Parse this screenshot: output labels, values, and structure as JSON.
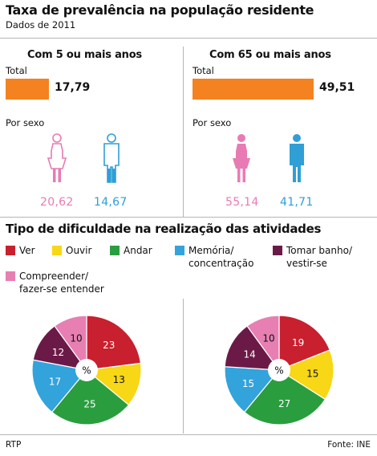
{
  "title": "Taxa de prevalência na população residente",
  "subtitle": "Dados de 2011",
  "colors": {
    "bar": "#f58220",
    "female": "#e87bb4",
    "male": "#2f9fd6",
    "ver": "#c8202e",
    "ouvir": "#f7d716",
    "andar": "#2a9e3f",
    "memoria": "#33a3dc",
    "tomar": "#6b1a47",
    "compreender": "#e77fb2"
  },
  "groups": [
    {
      "heading": "Com 5 ou mais anos",
      "total_label": "Total",
      "total_value": "17,79",
      "sexo_label": "Por sexo",
      "female_value": "20,62",
      "male_value": "14,67"
    },
    {
      "heading": "Com 65 ou mais anos",
      "total_label": "Total",
      "total_value": "49,51",
      "sexo_label": "Por sexo",
      "female_value": "55,14",
      "male_value": "41,71"
    }
  ],
  "section2_title": "Tipo de dificuldade  na realização das atividades",
  "legend": [
    {
      "lines": [
        "Ver"
      ],
      "color": "#c8202e"
    },
    {
      "lines": [
        "Ouvir"
      ],
      "color": "#f7d716"
    },
    {
      "lines": [
        "Andar"
      ],
      "color": "#2a9e3f"
    },
    {
      "lines": [
        "Memória/",
        "concentração"
      ],
      "color": "#33a3dc"
    },
    {
      "lines": [
        "Tomar banho/",
        "vestir-se"
      ],
      "color": "#6b1a47"
    },
    {
      "lines": [
        "Compreender/",
        "fazer-se entender"
      ],
      "color": "#e77fb2"
    }
  ],
  "center_label": "%",
  "footer_left": "RTP",
  "footer_right": "Fonte: INE",
  "chart_data": [
    {
      "type": "bar",
      "categories": [
        "Com 5 ou mais anos",
        "Com 65 ou mais anos"
      ],
      "values": [
        17.79,
        49.51
      ],
      "xlim": [
        0,
        50
      ]
    },
    {
      "type": "bar",
      "categories": [
        "Com 5 ou mais anos (mulheres)",
        "Com 5 ou mais anos (homens)",
        "Com 65 ou mais anos (mulheres)",
        "Com 65 ou mais anos (homens)"
      ],
      "values": [
        20.62,
        14.67,
        55.14,
        41.71
      ]
    },
    {
      "type": "pie",
      "categories": [
        "Ver",
        "Ouvir",
        "Andar",
        "Memória/concentração",
        "Tomar banho/vestir-se",
        "Compreender/fazer-se entender"
      ],
      "values": [
        23,
        13,
        25,
        17,
        12,
        10
      ]
    },
    {
      "type": "pie",
      "categories": [
        "Ver",
        "Ouvir",
        "Andar",
        "Memória/concentração",
        "Tomar banho/vestir-se",
        "Compreender/fazer-se entender"
      ],
      "values": [
        19,
        15,
        27,
        15,
        14,
        10
      ]
    }
  ]
}
